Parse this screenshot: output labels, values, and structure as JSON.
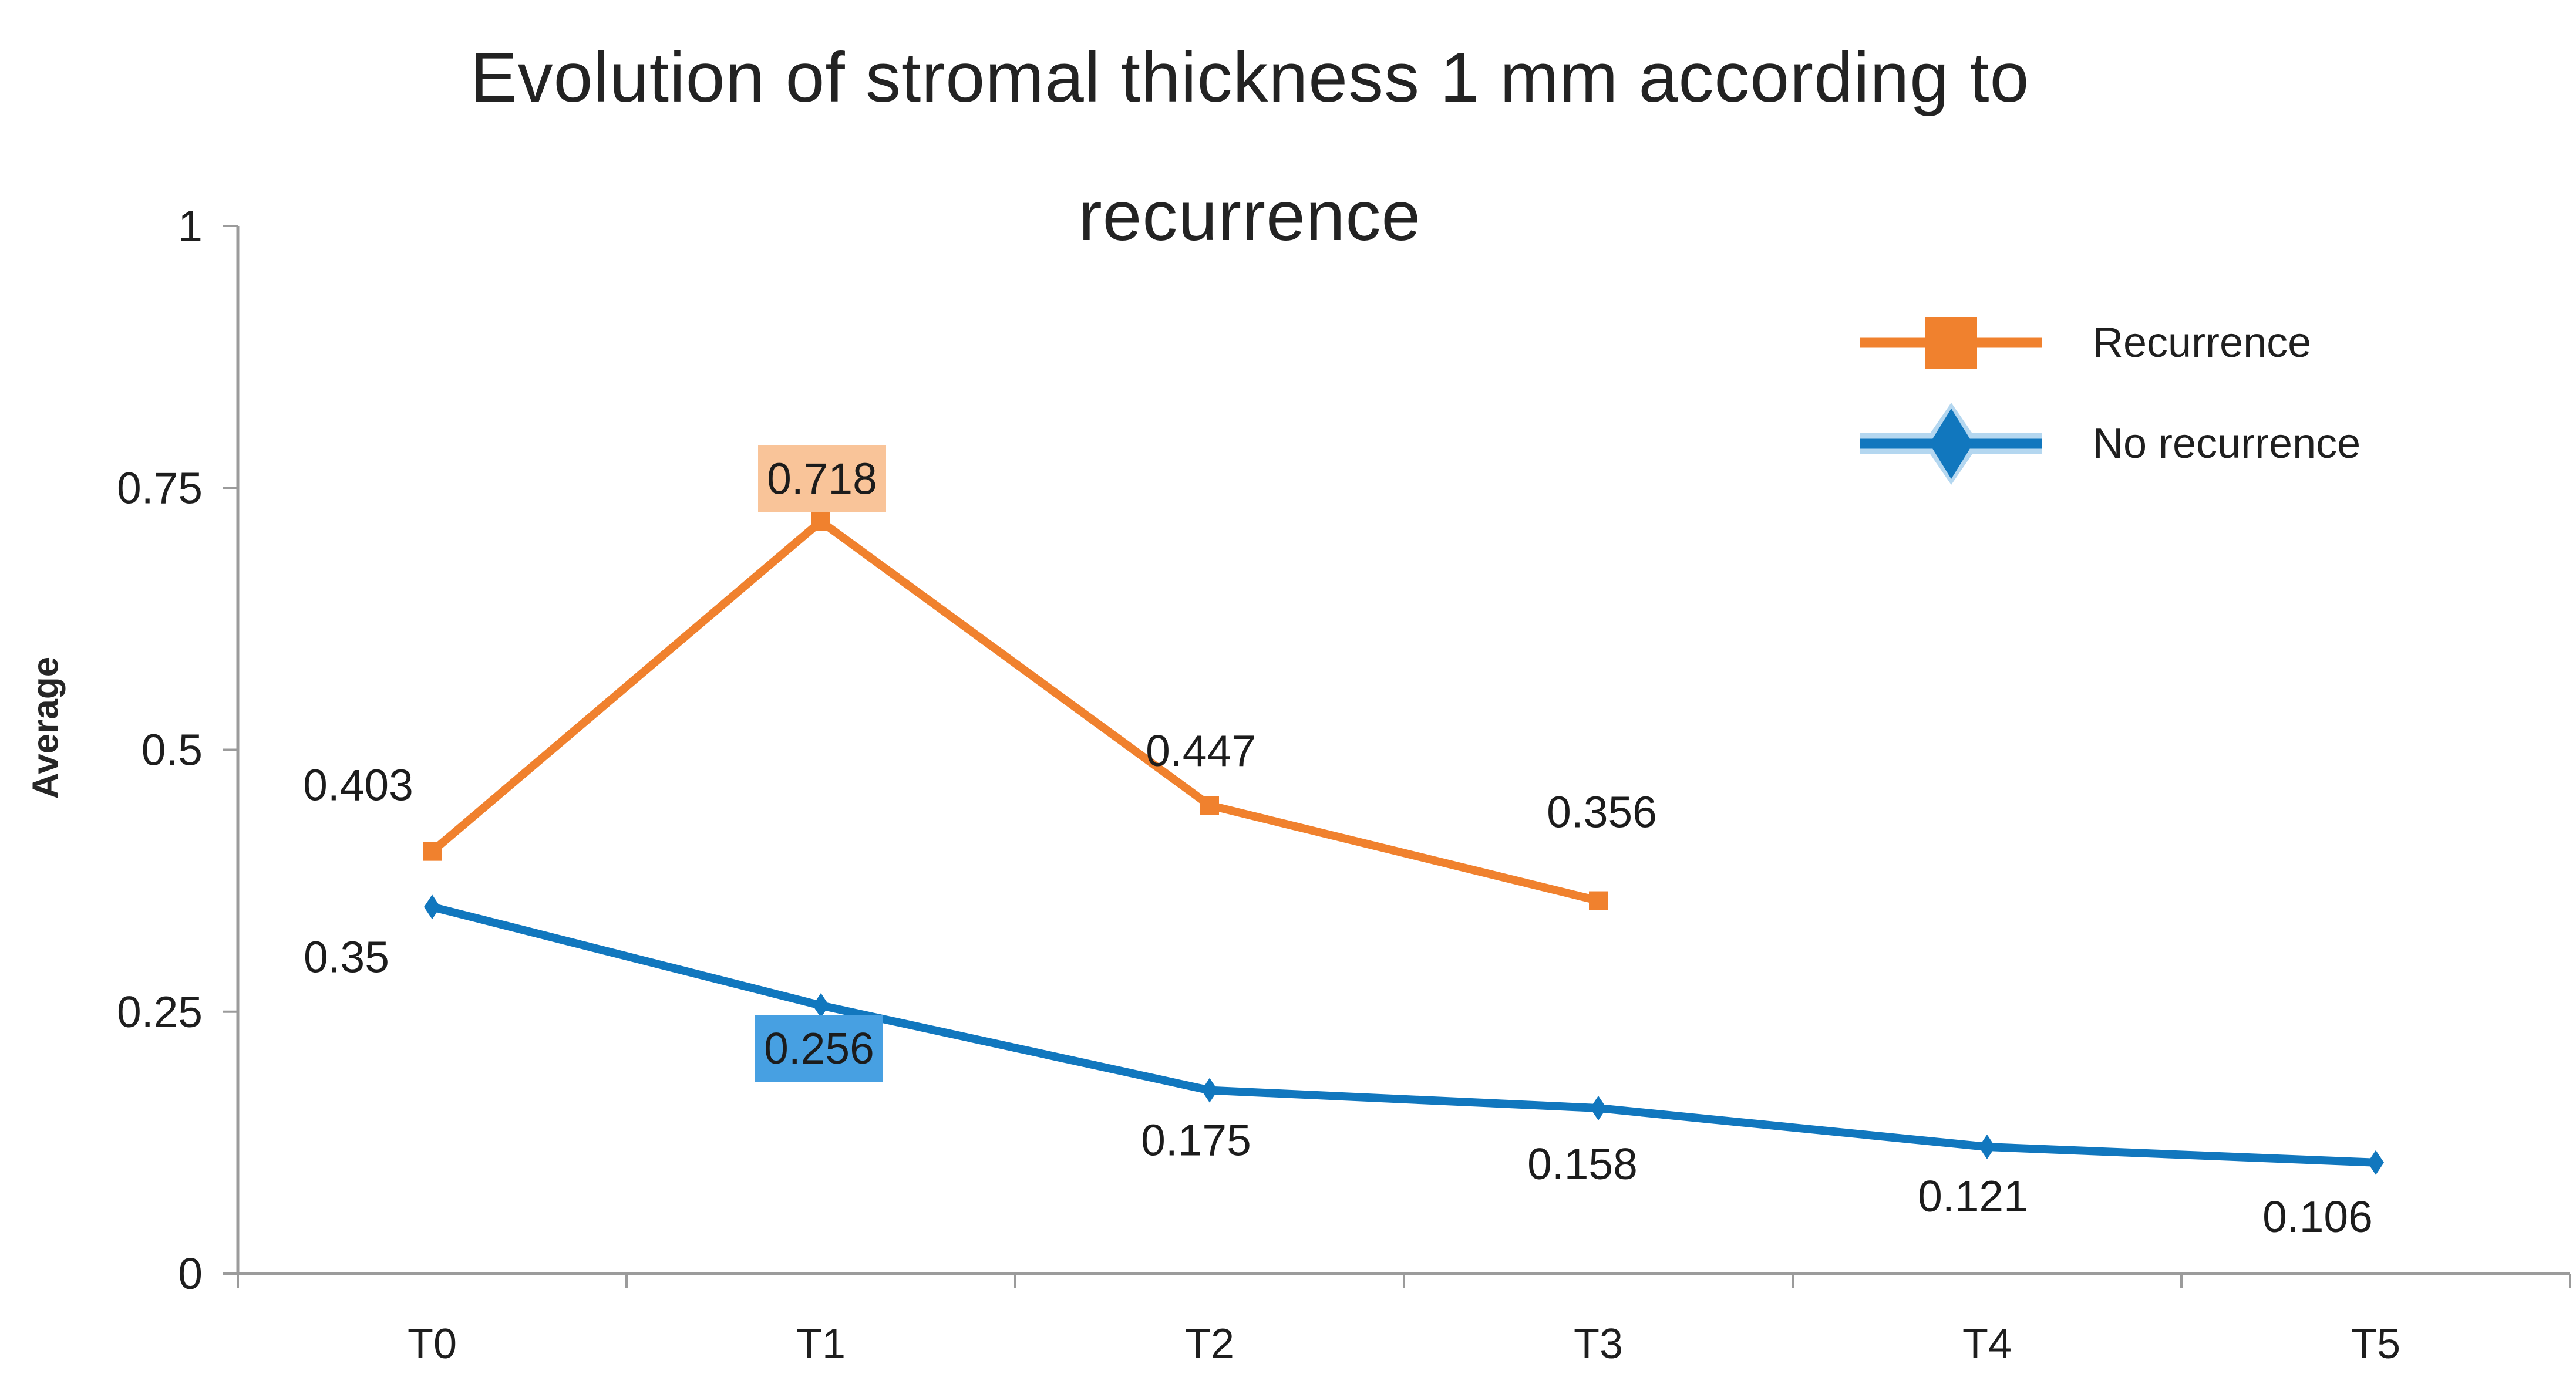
{
  "title": {
    "line1": "Evolution of stromal thickness 1 mm according to",
    "line2": "recurrence"
  },
  "chart_data": {
    "type": "line",
    "title": "Evolution of stromal thickness 1 mm according to recurrence",
    "xlabel": "",
    "ylabel": "Average",
    "categories": [
      "T0",
      "T1",
      "T2",
      "T3",
      "T4",
      "T5"
    ],
    "ylim": [
      0,
      1
    ],
    "yticks": [
      {
        "value": 0,
        "label": "0"
      },
      {
        "value": 0.25,
        "label": "0.25"
      },
      {
        "value": 0.5,
        "label": "0.5"
      },
      {
        "value": 0.75,
        "label": "0.75"
      },
      {
        "value": 1,
        "label": "1"
      }
    ],
    "grid": "off",
    "legend_position": "upper-right",
    "axis_color": "#9B9B9B",
    "text_color": "#1e1e1e",
    "series": [
      {
        "name": "Recurrence",
        "color": "#F0812E",
        "marker": "square",
        "label_box_color": "#F9C499",
        "points": [
          {
            "category": "T0",
            "value": 0.403,
            "label": "0.403",
            "boxed": false,
            "dx": -126,
            "dy": -113
          },
          {
            "category": "T1",
            "value": 0.718,
            "label": "0.718",
            "boxed": true,
            "dx": 2,
            "dy": -73
          },
          {
            "category": "T2",
            "value": 0.447,
            "label": "0.447",
            "boxed": false,
            "dx": -15,
            "dy": -93
          },
          {
            "category": "T3",
            "value": 0.356,
            "label": "0.356",
            "boxed": false,
            "dx": 6,
            "dy": -151
          }
        ]
      },
      {
        "name": "No recurrence",
        "color": "#1177BE",
        "marker": "diamond",
        "label_box_color": "#47A0E2",
        "legend_halo_color": "#B4D7F0",
        "points": [
          {
            "category": "T0",
            "value": 0.35,
            "label": "0.35",
            "boxed": false,
            "dx": -146,
            "dy": 85
          },
          {
            "category": "T1",
            "value": 0.256,
            "label": "0.256",
            "boxed": true,
            "dx": -3,
            "dy": 73
          },
          {
            "category": "T2",
            "value": 0.175,
            "label": "0.175",
            "boxed": false,
            "dx": -23,
            "dy": 85
          },
          {
            "category": "T3",
            "value": 0.158,
            "label": "0.158",
            "boxed": false,
            "dx": -27,
            "dy": 95
          },
          {
            "category": "T4",
            "value": 0.121,
            "label": "0.121",
            "boxed": false,
            "dx": -24,
            "dy": 84
          },
          {
            "category": "T5",
            "value": 0.106,
            "label": "0.106",
            "boxed": false,
            "dx": -99,
            "dy": 92
          }
        ]
      }
    ]
  }
}
